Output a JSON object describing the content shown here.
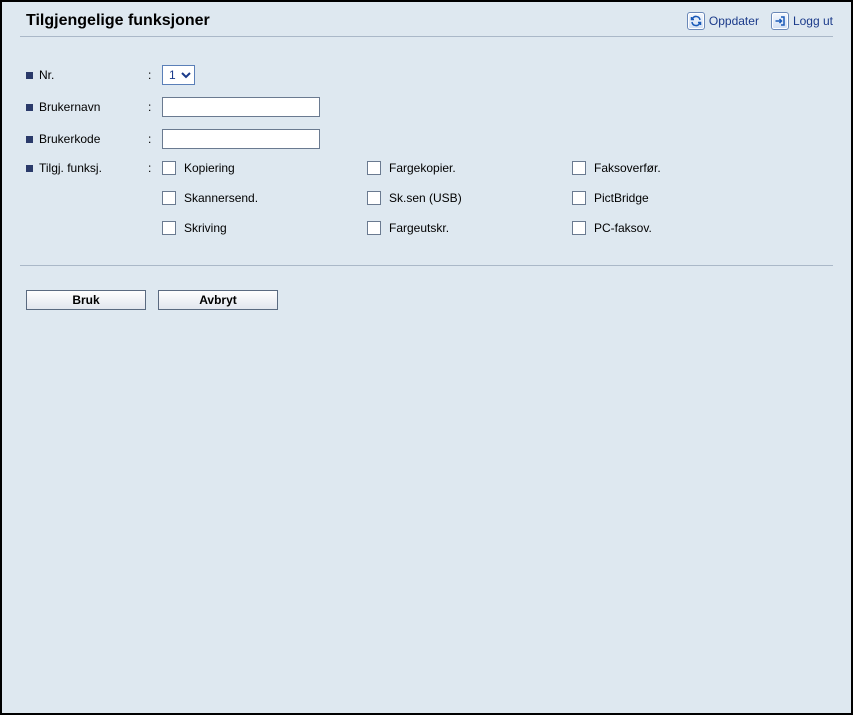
{
  "header": {
    "title": "Tilgjengelige funksjoner",
    "refresh_label": "Oppdater",
    "logout_label": "Logg ut"
  },
  "form": {
    "nr": {
      "label": "Nr.",
      "selected": "1",
      "options": [
        "1"
      ]
    },
    "username": {
      "label": "Brukernavn",
      "value": ""
    },
    "usercode": {
      "label": "Brukerkode",
      "value": ""
    },
    "available_functions": {
      "label": "Tilgj. funksj.",
      "items": [
        {
          "key": "kopiering",
          "label": "Kopiering",
          "checked": false
        },
        {
          "key": "fargekopier",
          "label": "Fargekopier.",
          "checked": false
        },
        {
          "key": "faksoverfor",
          "label": "Faksoverfør.",
          "checked": false
        },
        {
          "key": "skannersend",
          "label": "Skannersend.",
          "checked": false
        },
        {
          "key": "sksenusb",
          "label": "Sk.sen (USB)",
          "checked": false
        },
        {
          "key": "pictbridge",
          "label": "PictBridge",
          "checked": false
        },
        {
          "key": "skriving",
          "label": "Skriving",
          "checked": false
        },
        {
          "key": "fargeutskr",
          "label": "Fargeutskr.",
          "checked": false
        },
        {
          "key": "pcfaksov",
          "label": "PC-faksov.",
          "checked": false
        }
      ]
    }
  },
  "buttons": {
    "apply": "Bruk",
    "cancel": "Avbryt"
  },
  "colors": {
    "page_bg": "#dee8f0",
    "link_color": "#1a3a8a",
    "bullet_color": "#2a3a6a",
    "divider_color": "#aab8c8",
    "input_border": "#6a7a90"
  }
}
